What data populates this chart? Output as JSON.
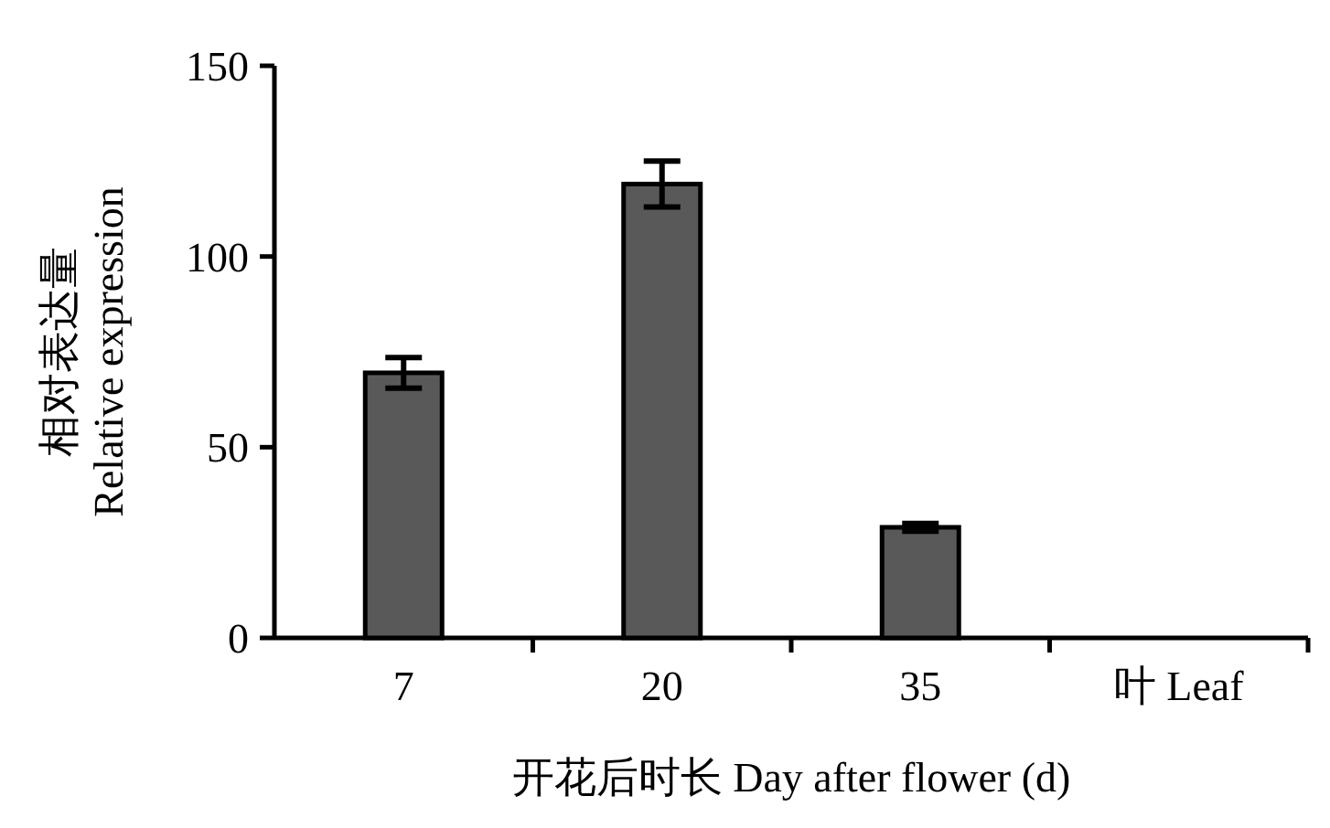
{
  "chart_data": {
    "type": "bar",
    "categories": [
      "7",
      "20",
      "35",
      "叶 Leaf"
    ],
    "values": [
      69.5,
      119,
      29,
      0
    ],
    "errors": [
      4,
      6,
      1,
      null
    ],
    "color": "#595959",
    "ylim": [
      0,
      150
    ],
    "yticks": [
      0,
      50,
      100,
      150
    ],
    "ylabel": "相对表达量\nRelative expression",
    "xlabel": "开花后时长 Day after flower (d)",
    "grid": false
  }
}
